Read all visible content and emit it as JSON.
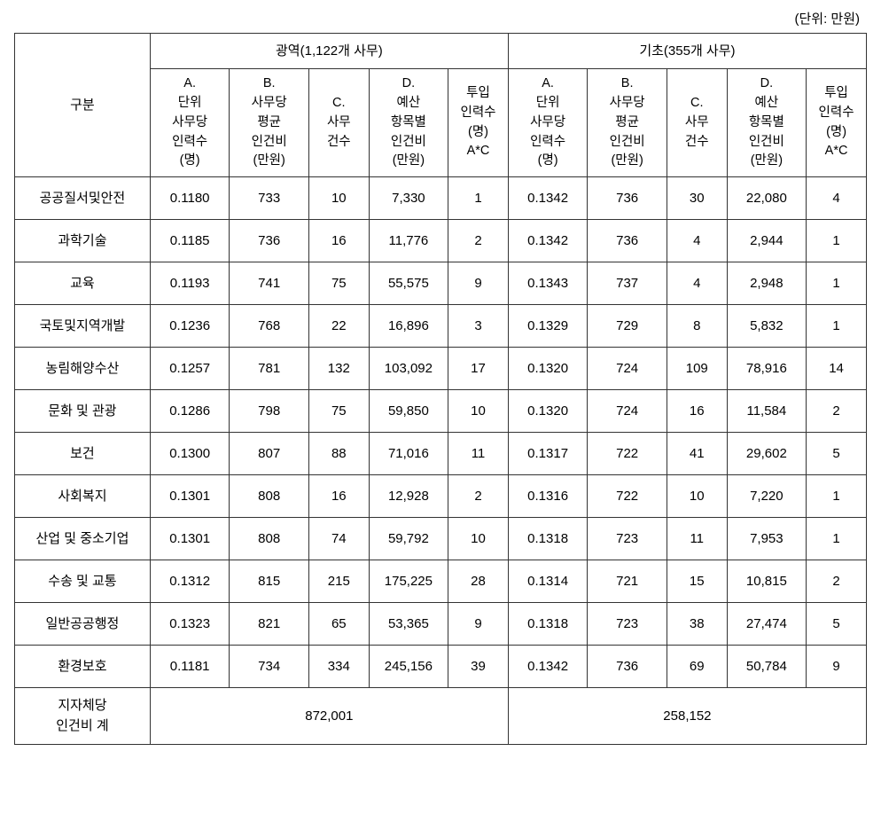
{
  "unit_label": "(단위: 만원)",
  "header": {
    "category": "구분",
    "group1_label": "광역(1,122개 사무)",
    "group2_label": "기초(355개 사무)",
    "colA": "A.\n단위\n사무당\n인력수\n(명)",
    "colB": "B.\n사무당\n평균\n인건비\n(만원)",
    "colC": "C.\n사무\n건수",
    "colD": "D.\n예산\n항목별\n인건비\n(만원)",
    "colE": "투입\n인력수\n(명)\nA*C"
  },
  "rows": [
    {
      "cat": "공공질서및안전",
      "a1": "0.1180",
      "b1": "733",
      "c1": "10",
      "d1": "7,330",
      "e1": "1",
      "a2": "0.1342",
      "b2": "736",
      "c2": "30",
      "d2": "22,080",
      "e2": "4"
    },
    {
      "cat": "과학기술",
      "a1": "0.1185",
      "b1": "736",
      "c1": "16",
      "d1": "11,776",
      "e1": "2",
      "a2": "0.1342",
      "b2": "736",
      "c2": "4",
      "d2": "2,944",
      "e2": "1"
    },
    {
      "cat": "교육",
      "a1": "0.1193",
      "b1": "741",
      "c1": "75",
      "d1": "55,575",
      "e1": "9",
      "a2": "0.1343",
      "b2": "737",
      "c2": "4",
      "d2": "2,948",
      "e2": "1"
    },
    {
      "cat": "국토및지역개발",
      "a1": "0.1236",
      "b1": "768",
      "c1": "22",
      "d1": "16,896",
      "e1": "3",
      "a2": "0.1329",
      "b2": "729",
      "c2": "8",
      "d2": "5,832",
      "e2": "1"
    },
    {
      "cat": "농림해양수산",
      "a1": "0.1257",
      "b1": "781",
      "c1": "132",
      "d1": "103,092",
      "e1": "17",
      "a2": "0.1320",
      "b2": "724",
      "c2": "109",
      "d2": "78,916",
      "e2": "14"
    },
    {
      "cat": "문화 및 관광",
      "a1": "0.1286",
      "b1": "798",
      "c1": "75",
      "d1": "59,850",
      "e1": "10",
      "a2": "0.1320",
      "b2": "724",
      "c2": "16",
      "d2": "11,584",
      "e2": "2"
    },
    {
      "cat": "보건",
      "a1": "0.1300",
      "b1": "807",
      "c1": "88",
      "d1": "71,016",
      "e1": "11",
      "a2": "0.1317",
      "b2": "722",
      "c2": "41",
      "d2": "29,602",
      "e2": "5"
    },
    {
      "cat": "사회복지",
      "a1": "0.1301",
      "b1": "808",
      "c1": "16",
      "d1": "12,928",
      "e1": "2",
      "a2": "0.1316",
      "b2": "722",
      "c2": "10",
      "d2": "7,220",
      "e2": "1"
    },
    {
      "cat": "산업 및 중소기업",
      "a1": "0.1301",
      "b1": "808",
      "c1": "74",
      "d1": "59,792",
      "e1": "10",
      "a2": "0.1318",
      "b2": "723",
      "c2": "11",
      "d2": "7,953",
      "e2": "1"
    },
    {
      "cat": "수송 및 교통",
      "a1": "0.1312",
      "b1": "815",
      "c1": "215",
      "d1": "175,225",
      "e1": "28",
      "a2": "0.1314",
      "b2": "721",
      "c2": "15",
      "d2": "10,815",
      "e2": "2"
    },
    {
      "cat": "일반공공행정",
      "a1": "0.1323",
      "b1": "821",
      "c1": "65",
      "d1": "53,365",
      "e1": "9",
      "a2": "0.1318",
      "b2": "723",
      "c2": "38",
      "d2": "27,474",
      "e2": "5"
    },
    {
      "cat": "환경보호",
      "a1": "0.1181",
      "b1": "734",
      "c1": "334",
      "d1": "245,156",
      "e1": "39",
      "a2": "0.1342",
      "b2": "736",
      "c2": "69",
      "d2": "50,784",
      "e2": "9"
    }
  ],
  "total": {
    "label": "지자체당\n인건비 계",
    "val1": "872,001",
    "val2": "258,152"
  }
}
